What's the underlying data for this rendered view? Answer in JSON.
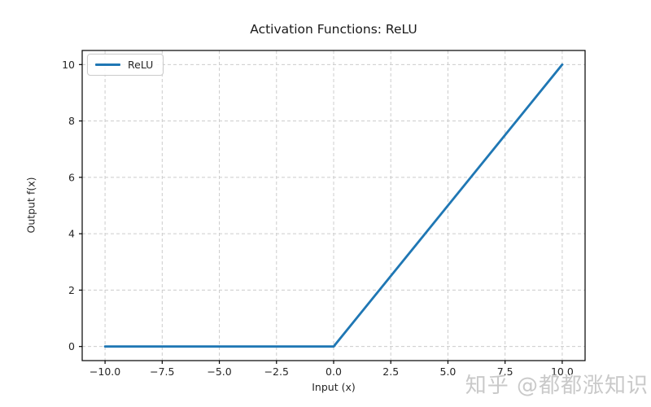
{
  "watermark": {
    "text": "知乎 @都都涨知识"
  },
  "chart_data": {
    "type": "line",
    "title": "Activation Functions: ReLU",
    "xlabel": "Input (x)",
    "ylabel": "Output f(x)",
    "xlim": [
      -11,
      11
    ],
    "ylim": [
      -0.5,
      10.5
    ],
    "xticks": {
      "values": [
        -10,
        -7.5,
        -5,
        -2.5,
        0,
        2.5,
        5,
        7.5,
        10
      ],
      "labels": [
        "−10.0",
        "−7.5",
        "−5.0",
        "−2.5",
        "0.0",
        "2.5",
        "5.0",
        "7.5",
        "10.0"
      ]
    },
    "yticks": {
      "values": [
        0,
        2,
        4,
        6,
        8,
        10
      ],
      "labels": [
        "0",
        "2",
        "4",
        "6",
        "8",
        "10"
      ]
    },
    "grid": true,
    "grid_style": "dashed",
    "grid_color": "#cccccc",
    "spine_color": "#000000",
    "tick_label_color": "#262626",
    "legend": {
      "position": "upper left",
      "entries": [
        "ReLU"
      ]
    },
    "series": [
      {
        "name": "ReLU",
        "color": "#1f77b4",
        "x": [
          -10,
          0,
          10
        ],
        "y": [
          0,
          0,
          10
        ]
      }
    ]
  }
}
